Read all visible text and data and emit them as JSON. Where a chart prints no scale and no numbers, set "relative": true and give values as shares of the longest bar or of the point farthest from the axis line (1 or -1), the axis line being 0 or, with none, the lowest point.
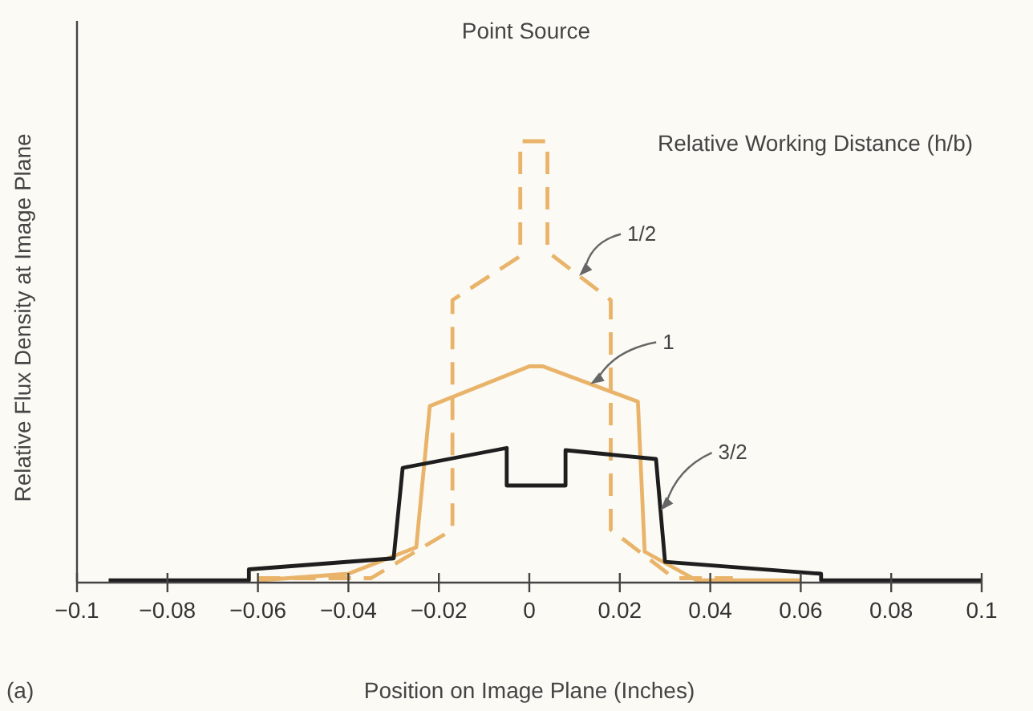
{
  "chart_data": {
    "type": "line",
    "title": "Point Source",
    "xlabel": "Position on Image Plane (Inches)",
    "ylabel": "Relative Flux Density at Image Plane",
    "legend_title": "Relative Working Distance (h/b)",
    "annotations": [
      "(a)"
    ],
    "relative": true,
    "grid": false,
    "xlim": [
      -0.1,
      0.1
    ],
    "xticks": [
      {
        "value": -0.1,
        "label": "−0.1"
      },
      {
        "value": -0.08,
        "label": "−0.08"
      },
      {
        "value": -0.06,
        "label": "−0.06"
      },
      {
        "value": -0.04,
        "label": "−0.04"
      },
      {
        "value": -0.02,
        "label": "−0.02"
      },
      0,
      0.02,
      0.04,
      0.06,
      0.08,
      0.1
    ],
    "series": [
      {
        "name": "1/2",
        "color": "#e9b46a",
        "line_style": "dashed",
        "x": [
          -0.06,
          -0.035,
          -0.017,
          -0.017,
          -0.002,
          -0.002,
          0.004,
          0.004,
          0.018,
          0.018,
          0.032,
          0.045
        ],
        "values": [
          0.01,
          0.01,
          0.12,
          0.64,
          0.74,
          1.0,
          1.0,
          0.75,
          0.64,
          0.12,
          0.01,
          0.01
        ]
      },
      {
        "name": "1",
        "color": "#e9b46a",
        "line_style": "solid",
        "x": [
          -0.06,
          -0.04,
          -0.025,
          -0.022,
          0.0,
          0.003,
          0.024,
          0.0255,
          0.037,
          0.06
        ],
        "values": [
          0.005,
          0.02,
          0.08,
          0.4,
          0.49,
          0.49,
          0.41,
          0.07,
          0.005,
          0.005
        ]
      },
      {
        "name": "3/2",
        "color": "#1e1e1e",
        "line_style": "solid",
        "x": [
          -0.093,
          -0.062,
          -0.062,
          -0.03,
          -0.028,
          -0.005,
          -0.005,
          0.008,
          0.008,
          0.028,
          0.03,
          0.0645,
          0.0645,
          0.1
        ],
        "values": [
          0.005,
          0.005,
          0.03,
          0.055,
          0.26,
          0.305,
          0.22,
          0.22,
          0.3,
          0.28,
          0.047,
          0.02,
          0.005,
          0.005
        ]
      }
    ]
  }
}
